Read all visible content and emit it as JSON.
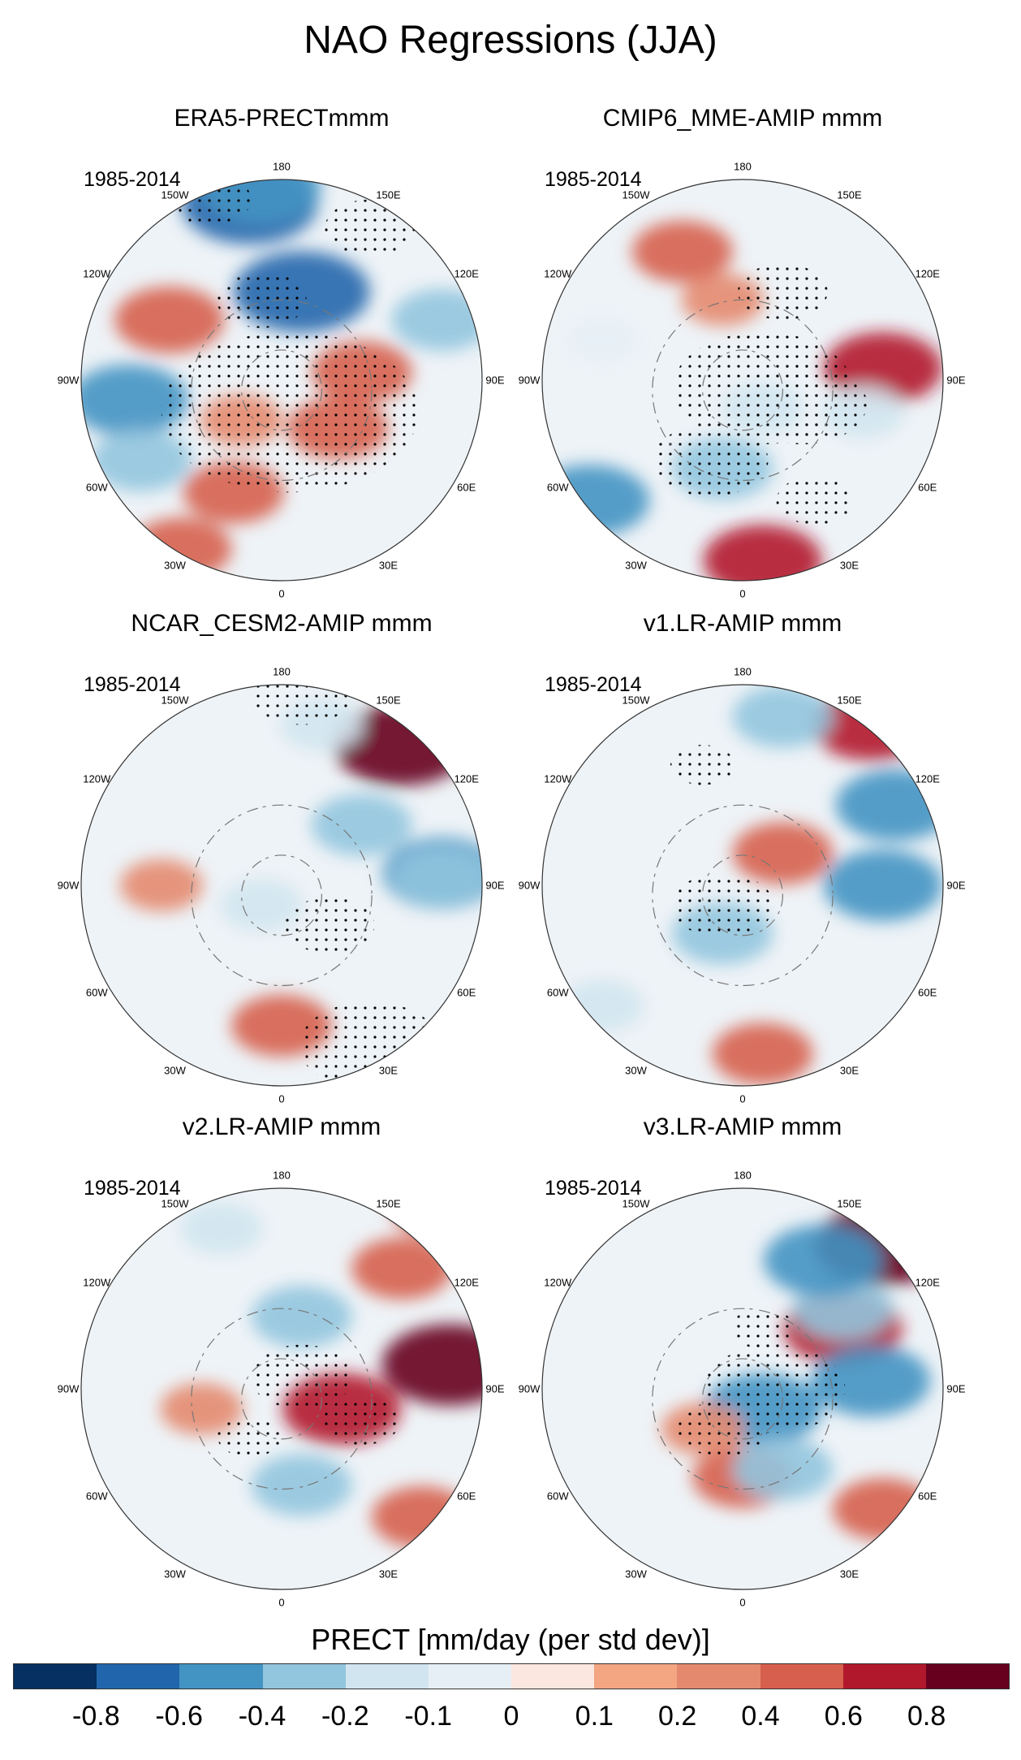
{
  "title": "NAO Regressions (JJA)",
  "longitudes": [
    "180",
    "150E",
    "120E",
    "90E",
    "60E",
    "30E",
    "0",
    "30W",
    "60W",
    "90W",
    "120W",
    "150W"
  ],
  "panels": [
    {
      "title": "ERA5-PRECTmmm",
      "period": "1985-2014",
      "blobs": [
        [
          -0.6,
          0.12,
          0.55
        ],
        [
          0.5,
          0.22,
          0.35
        ],
        [
          -0.8,
          0.42,
          0.06
        ],
        [
          -0.8,
          0.55,
          0.28
        ],
        [
          0.4,
          0.7,
          0.48
        ],
        [
          0.4,
          0.64,
          0.62
        ],
        [
          -0.4,
          0.9,
          0.35
        ],
        [
          0.4,
          0.25,
          0.92
        ],
        [
          0.4,
          0.38,
          0.78
        ],
        [
          -0.4,
          0.15,
          0.7
        ],
        [
          -0.2,
          0.0,
          0.0
        ],
        [
          0.2,
          0.4,
          0.6
        ],
        [
          -0.6,
          0.45,
          0.02
        ]
      ],
      "stipples": [
        [
          0.45,
          0.3,
          0.14
        ],
        [
          0.52,
          0.58,
          0.4
        ],
        [
          0.72,
          0.12,
          0.14
        ],
        [
          0.32,
          0.05,
          0.13
        ]
      ]
    },
    {
      "title": "CMIP6_MME-AMIP  mmm",
      "period": "1985-2014",
      "blobs": [
        [
          -0.4,
          0.45,
          0.72
        ],
        [
          -0.6,
          0.12,
          0.8
        ],
        [
          0.6,
          0.85,
          0.47
        ],
        [
          0.6,
          0.55,
          0.95
        ],
        [
          0.4,
          0.35,
          0.18
        ],
        [
          -0.2,
          0.55,
          0.57
        ],
        [
          -0.1,
          0.15,
          0.4
        ],
        [
          -0.2,
          0.8,
          0.58
        ],
        [
          0.2,
          0.45,
          0.3
        ]
      ],
      "stipples": [
        [
          0.42,
          0.7,
          0.18
        ],
        [
          0.55,
          0.52,
          0.28
        ],
        [
          0.6,
          0.28,
          0.14
        ],
        [
          0.68,
          0.8,
          0.12
        ],
        [
          0.65,
          0.56,
          0.2
        ]
      ]
    },
    {
      "title": "NCAR_CESM2-AMIP  mmm",
      "period": "1985-2014",
      "blobs": [
        [
          0.8,
          0.8,
          0.15
        ],
        [
          0.4,
          0.5,
          0.85
        ],
        [
          -0.6,
          0.9,
          0.47
        ],
        [
          -0.4,
          0.9,
          0.48
        ],
        [
          -0.4,
          0.7,
          0.35
        ],
        [
          -0.2,
          0.45,
          0.55
        ],
        [
          0.2,
          0.2,
          0.5
        ],
        [
          -0.2,
          0.6,
          0.1
        ]
      ],
      "stipples": [
        [
          0.62,
          0.6,
          0.14
        ],
        [
          0.72,
          0.9,
          0.22
        ],
        [
          0.55,
          0.02,
          0.16
        ]
      ]
    },
    {
      "title": "v1.LR-AMIP  mmm",
      "period": "1985-2014",
      "blobs": [
        [
          0.6,
          0.82,
          0.1
        ],
        [
          0.4,
          0.55,
          0.92
        ],
        [
          -0.6,
          0.88,
          0.3
        ],
        [
          -0.6,
          0.85,
          0.5
        ],
        [
          -0.4,
          0.45,
          0.62
        ],
        [
          -0.4,
          0.6,
          0.08
        ],
        [
          0.4,
          0.6,
          0.42
        ],
        [
          -0.2,
          0.15,
          0.8
        ]
      ],
      "stipples": [
        [
          0.45,
          0.55,
          0.16
        ],
        [
          0.4,
          0.2,
          0.1
        ]
      ]
    },
    {
      "title": "v2.LR-AMIP  mmm",
      "period": "1985-2014",
      "blobs": [
        [
          0.6,
          0.65,
          0.55
        ],
        [
          0.4,
          0.8,
          0.2
        ],
        [
          0.8,
          0.92,
          0.44
        ],
        [
          -0.4,
          0.55,
          0.74
        ],
        [
          0.4,
          0.9,
          0.05
        ],
        [
          0.4,
          0.85,
          0.82
        ],
        [
          -0.4,
          0.55,
          0.32
        ],
        [
          -0.2,
          0.35,
          0.1
        ],
        [
          0.2,
          0.3,
          0.55
        ]
      ],
      "stipples": [
        [
          0.55,
          0.47,
          0.16
        ],
        [
          0.7,
          0.58,
          0.12
        ],
        [
          0.42,
          0.62,
          0.1
        ]
      ]
    },
    {
      "title": "v3.LR-AMIP  mmm",
      "period": "1985-2014",
      "blobs": [
        [
          0.8,
          0.85,
          0.14
        ],
        [
          0.6,
          0.75,
          0.35
        ],
        [
          -0.6,
          0.55,
          0.55
        ],
        [
          -0.6,
          0.82,
          0.48
        ],
        [
          -0.4,
          0.75,
          0.3
        ],
        [
          0.4,
          0.5,
          0.72
        ],
        [
          0.4,
          0.85,
          0.8
        ],
        [
          -0.6,
          0.7,
          0.18
        ],
        [
          -0.4,
          0.6,
          0.7
        ],
        [
          0.2,
          0.4,
          0.6
        ]
      ],
      "stipples": [
        [
          0.58,
          0.5,
          0.22
        ],
        [
          0.45,
          0.6,
          0.14
        ],
        [
          0.55,
          0.35,
          0.1
        ]
      ]
    }
  ],
  "colorbar": {
    "label": "PRECT [mm/day (per std dev)]",
    "colors": [
      "#053061",
      "#2166ac",
      "#4393c3",
      "#92c5de",
      "#d1e5f0",
      "#e7eff6",
      "#fbe7df",
      "#f4a582",
      "#e4896e",
      "#d6604d",
      "#b2182b",
      "#67001f"
    ],
    "ticks": [
      "-0.8",
      "-0.6",
      "-0.4",
      "-0.2",
      "-0.1",
      "0",
      "0.1",
      "0.2",
      "0.4",
      "0.6",
      "0.8"
    ]
  }
}
